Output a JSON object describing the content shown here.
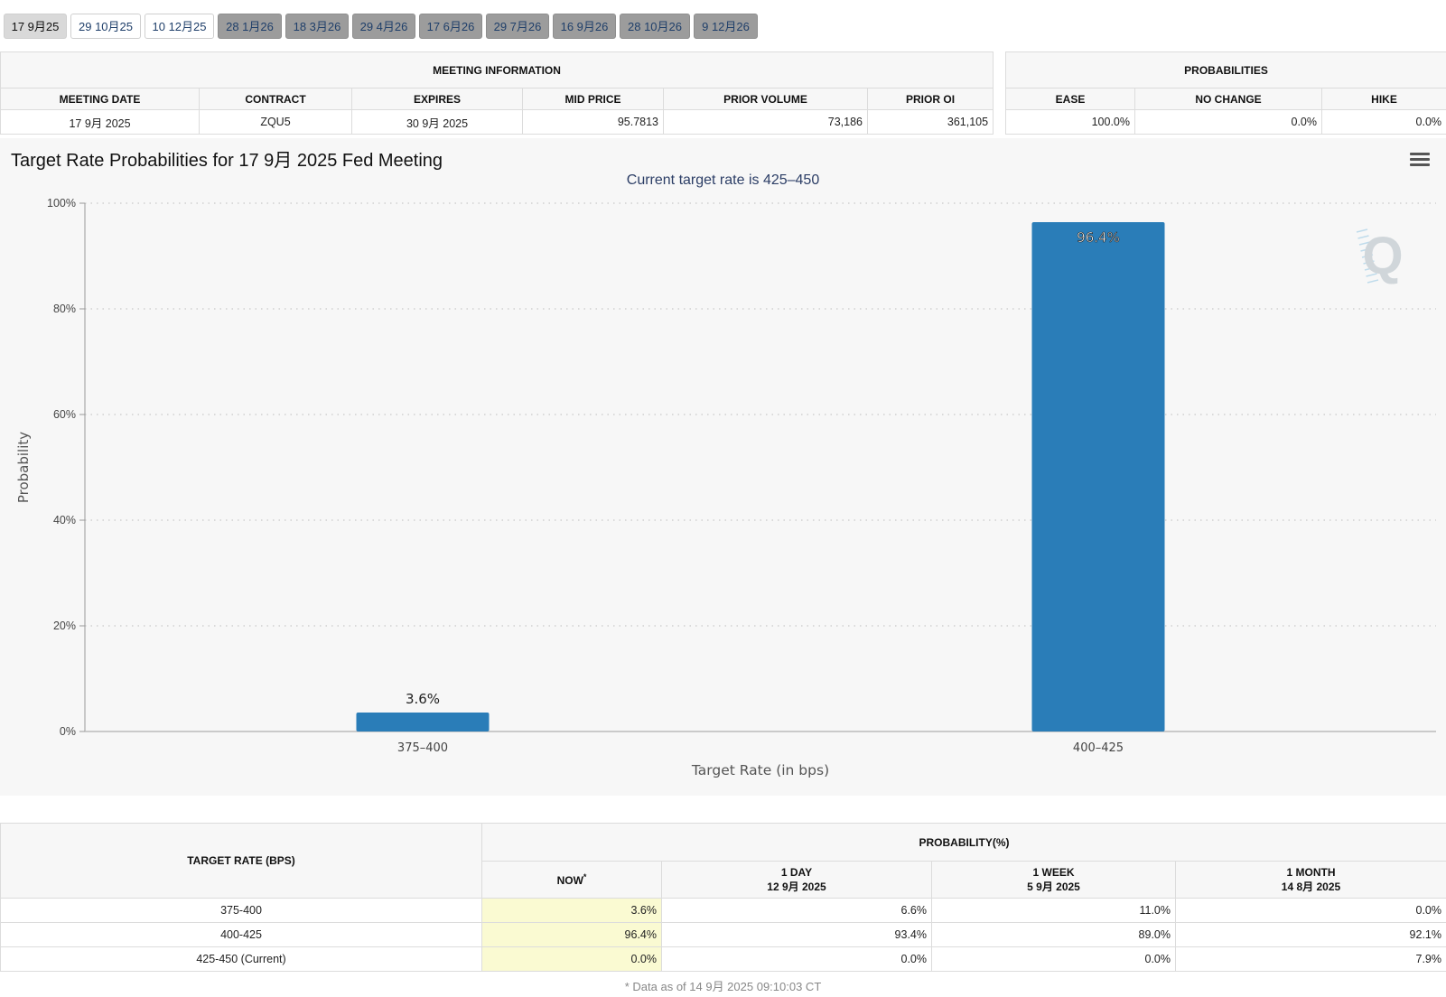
{
  "tabs": [
    {
      "label": "17 9月25",
      "style": "active"
    },
    {
      "label": "29 10月25",
      "style": "light"
    },
    {
      "label": "10 12月25",
      "style": "light"
    },
    {
      "label": "28 1月26",
      "style": "dark"
    },
    {
      "label": "18 3月26",
      "style": "dark"
    },
    {
      "label": "29 4月26",
      "style": "dark"
    },
    {
      "label": "17 6月26",
      "style": "dark"
    },
    {
      "label": "29 7月26",
      "style": "dark"
    },
    {
      "label": "16 9月26",
      "style": "dark"
    },
    {
      "label": "28 10月26",
      "style": "dark"
    },
    {
      "label": "9 12月26",
      "style": "dark"
    }
  ],
  "meeting_info": {
    "header": "MEETING INFORMATION",
    "columns": [
      "MEETING DATE",
      "CONTRACT",
      "EXPIRES",
      "MID PRICE",
      "PRIOR VOLUME",
      "PRIOR OI"
    ],
    "row": [
      "17 9月 2025",
      "ZQU5",
      "30 9月 2025",
      "95.7813",
      "73,186",
      "361,105"
    ]
  },
  "probabilities": {
    "header": "PROBABILITIES",
    "columns": [
      "EASE",
      "NO CHANGE",
      "HIKE"
    ],
    "row": [
      "100.0%",
      "0.0%",
      "0.0%"
    ]
  },
  "chart": {
    "title": "Target Rate Probabilities for 17 9月 2025 Fed Meeting",
    "subtitle": "Current target rate is 425–450",
    "menu_icon": "hamburger-menu-icon",
    "watermark_icon": "cme-q-logo-icon",
    "bar_color": "#2a7db8"
  },
  "chart_data": {
    "type": "bar",
    "categories": [
      "375–400",
      "400–425"
    ],
    "values": [
      3.6,
      96.4
    ],
    "data_labels": [
      "3.6%",
      "96.4%"
    ],
    "ylabel": "Probability",
    "xlabel": "Target Rate (in bps)",
    "ylim": [
      0,
      100
    ],
    "yticks": [
      0,
      20,
      40,
      60,
      80,
      100
    ],
    "ytick_labels": [
      "0%",
      "20%",
      "40%",
      "60%",
      "80%",
      "100%"
    ],
    "grid": true
  },
  "history": {
    "col0_header": "TARGET RATE (BPS)",
    "group_header": "PROBABILITY(%)",
    "columns": [
      {
        "line1": "NOW",
        "mark": "*",
        "line2": ""
      },
      {
        "line1": "1 DAY",
        "line2": "12 9月 2025"
      },
      {
        "line1": "1 WEEK",
        "line2": "5 9月 2025"
      },
      {
        "line1": "1 MONTH",
        "line2": "14 8月 2025"
      }
    ],
    "rows": [
      {
        "rate": "375-400",
        "values": [
          "3.6%",
          "6.6%",
          "11.0%",
          "0.0%"
        ]
      },
      {
        "rate": "400-425",
        "values": [
          "96.4%",
          "93.4%",
          "89.0%",
          "92.1%"
        ]
      },
      {
        "rate": "425-450 (Current)",
        "values": [
          "0.0%",
          "0.0%",
          "0.0%",
          "7.9%"
        ]
      }
    ],
    "footnote": "* Data as of 14 9月 2025 09:10:03 CT"
  }
}
